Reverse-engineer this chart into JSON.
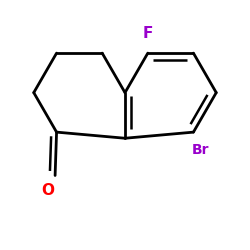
{
  "bg_color": "#ffffff",
  "bond_color": "#000000",
  "F_color": "#9900cc",
  "Br_color": "#9900cc",
  "O_color": "#ff0000",
  "F_label": "F",
  "Br_label": "Br",
  "O_label": "O",
  "linewidth": 2.0,
  "figsize": [
    2.5,
    2.5
  ],
  "dpi": 100,
  "xlim": [
    0.08,
    0.92
  ],
  "ylim": [
    0.1,
    0.92
  ]
}
